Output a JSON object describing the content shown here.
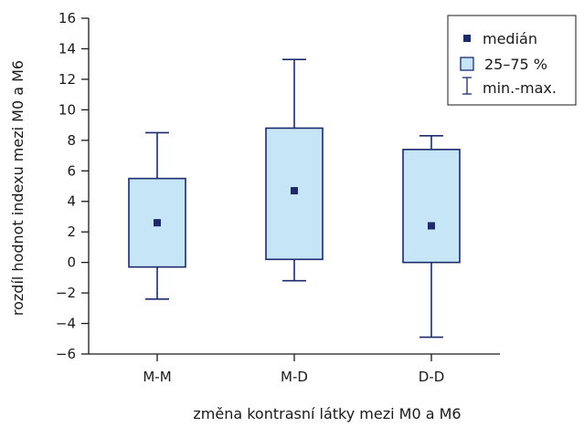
{
  "chart_data": {
    "type": "boxplot",
    "categories": [
      "M-M",
      "M-D",
      "D-D"
    ],
    "series": [
      {
        "category": "M-M",
        "min": -2.4,
        "q1": -0.3,
        "median": 2.6,
        "q3": 5.5,
        "max": 8.5
      },
      {
        "category": "M-D",
        "min": -1.2,
        "q1": 0.2,
        "median": 4.7,
        "q3": 8.8,
        "max": 13.3
      },
      {
        "category": "D-D",
        "min": -4.9,
        "q1": 0.0,
        "median": 2.4,
        "q3": 7.4,
        "max": 8.3
      }
    ],
    "xlabel": "změna kontrasní látky mezi M0 a M6",
    "ylabel": "rozdíl hodnot indexu mezi M0 a M6",
    "ylim": [
      -6,
      16
    ],
    "yticks": [
      -6,
      -4,
      -2,
      0,
      2,
      4,
      6,
      8,
      10,
      12,
      14,
      16
    ],
    "ytick_labels": [
      "−6",
      "−4",
      "−2",
      "0",
      "2",
      "4",
      "6",
      "8",
      "10",
      "12",
      "14",
      "16"
    ],
    "grid": false,
    "legend": {
      "placement": "top-right",
      "median_label": "medián",
      "box_label": "25–75 %",
      "range_label": "min.-max."
    },
    "colors": {
      "box_fill": "#c6e6f8",
      "stroke": "#1c2a6c",
      "median_marker": "#1c2a6c",
      "axis": "#1a1a1a"
    }
  }
}
